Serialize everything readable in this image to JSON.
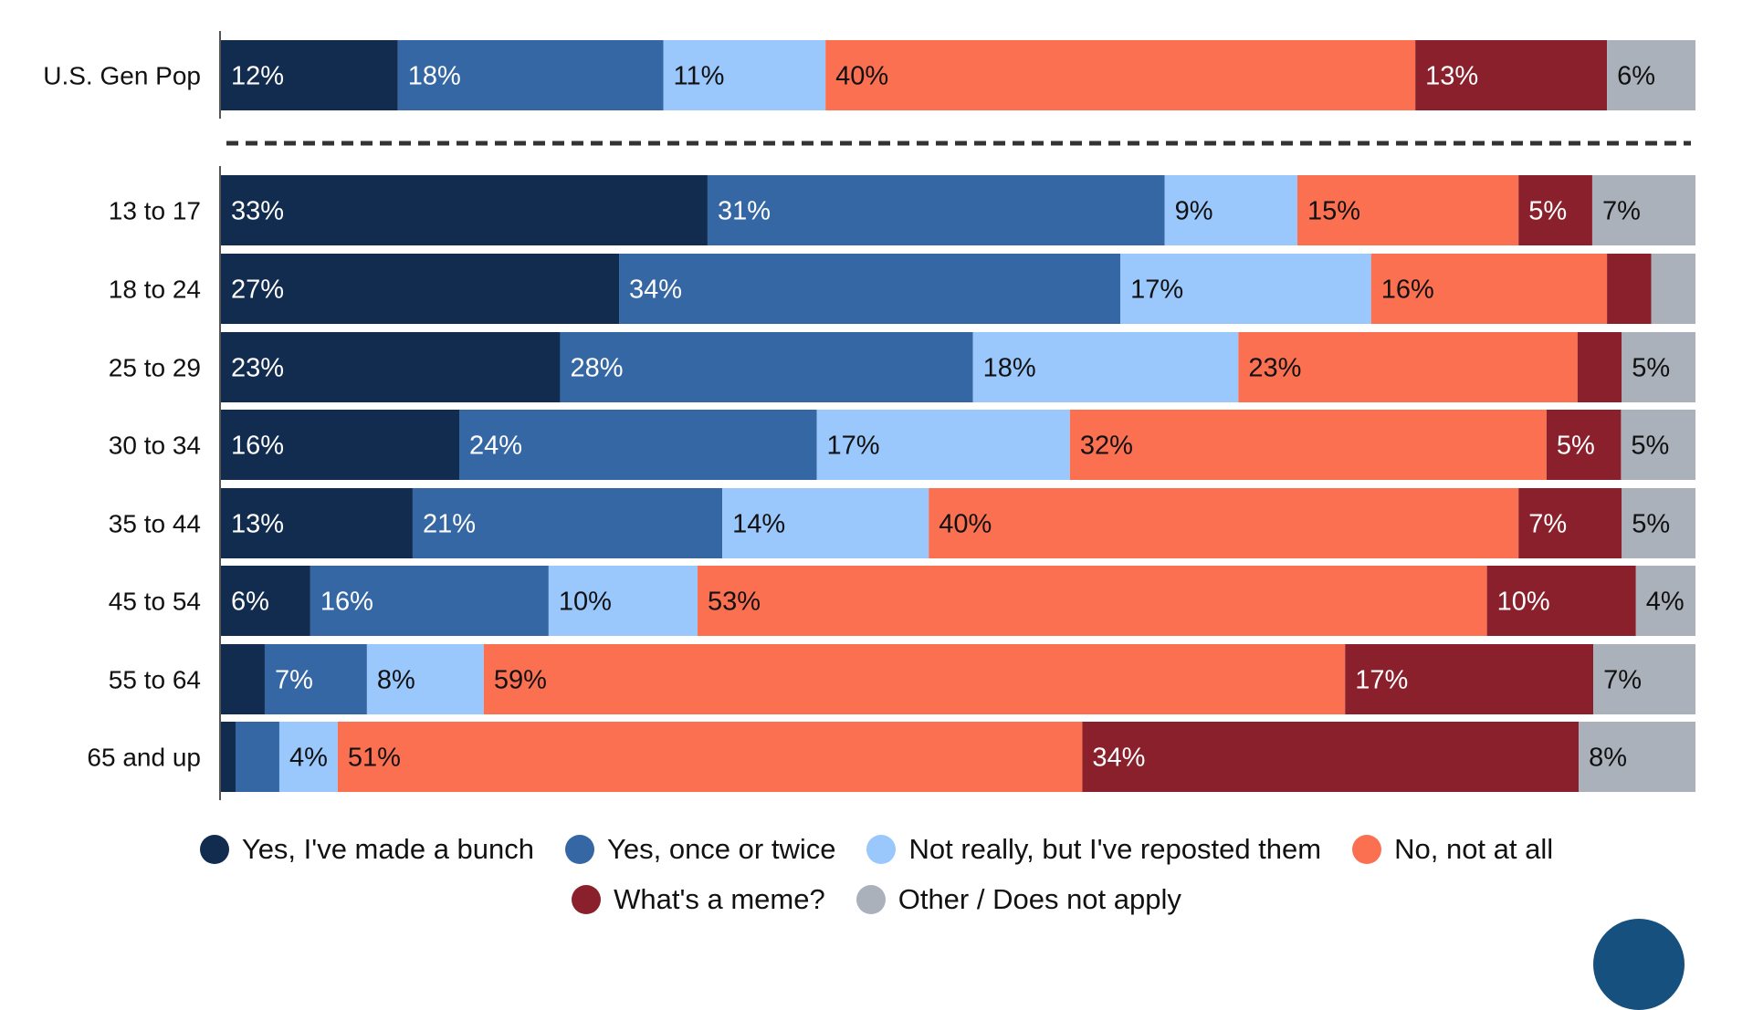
{
  "chart_data": {
    "type": "bar",
    "orientation": "horizontal",
    "stacked": true,
    "categories": [
      "U.S. Gen Pop",
      "13 to 17",
      "18 to 24",
      "25 to 29",
      "30 to 34",
      "35 to 44",
      "45 to 54",
      "55 to 64",
      "65 and up"
    ],
    "series": [
      {
        "name": "Yes, I've made a bunch",
        "color": "#122c4f",
        "text_color": "#ffffff",
        "values": [
          12,
          33,
          27,
          23,
          16,
          13,
          6,
          3,
          1
        ]
      },
      {
        "name": "Yes, once or twice",
        "color": "#3467a3",
        "text_color": "#ffffff",
        "values": [
          18,
          31,
          34,
          28,
          24,
          21,
          16,
          7,
          3
        ]
      },
      {
        "name": "Not really, but I've reposted them",
        "color": "#9ac8fc",
        "text_color": "#111111",
        "values": [
          11,
          9,
          17,
          18,
          17,
          14,
          10,
          8,
          4
        ]
      },
      {
        "name": "No, not at all",
        "color": "#fc7052",
        "text_color": "#111111",
        "values": [
          40,
          15,
          16,
          23,
          32,
          40,
          53,
          59,
          51
        ]
      },
      {
        "name": "What's a meme?",
        "color": "#89202c",
        "text_color": "#ffffff",
        "values": [
          13,
          5,
          3,
          3,
          5,
          7,
          10,
          17,
          34
        ]
      },
      {
        "name": "Other / Does not apply",
        "color": "#aab1bb",
        "text_color": "#111111",
        "values": [
          6,
          7,
          3,
          5,
          5,
          5,
          4,
          7,
          8
        ]
      }
    ],
    "unit": "%",
    "label_threshold": 4,
    "separator_after": "U.S. Gen Pop",
    "legend_position": "bottom",
    "grid": false
  }
}
